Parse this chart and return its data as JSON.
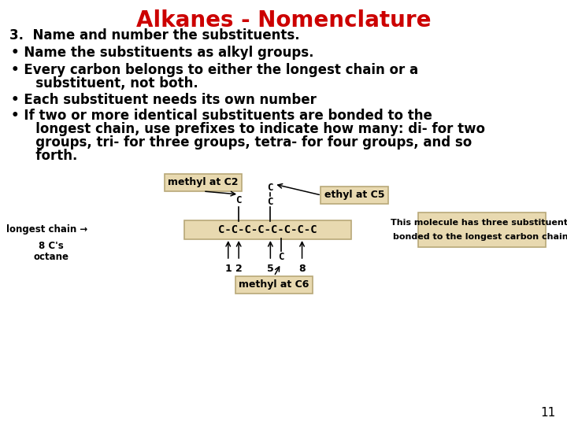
{
  "title": "Alkanes - Nomenclature",
  "title_color": "#cc0000",
  "title_fontsize": 20,
  "bg_color": "#ffffff",
  "body_fontsize": 12,
  "bullet_fontsize": 12,
  "line3": "3.  Name and number the substituents.",
  "bullet1": "Name the substituents as alkyl groups.",
  "bullet2a": "Every carbon belongs to either the longest chain or a",
  "bullet2b": "   substituent, not both.",
  "bullet3": "Each substituent needs its own number",
  "bullet4a": "If two or more identical substituents are bonded to the",
  "bullet4b": "   longest chain, use prefixes to indicate how many: di- for two",
  "bullet4c": "   groups, tri- for three groups, tetra- for four groups, and so",
  "bullet4d": "   forth.",
  "box_color": "#e8d9b0",
  "box_edge_color": "#b8a878",
  "chain_text": "C-C-C-C-C-C-C-C",
  "diagram_font": 9,
  "page_number": "11",
  "info_line1": "This molecule has three substituents",
  "info_line2": "bonded to the longest carbon chain."
}
